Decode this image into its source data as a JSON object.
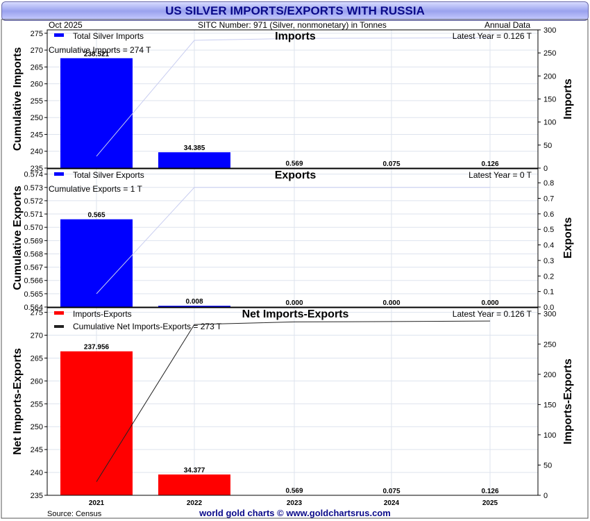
{
  "title": "US SILVER IMPORTS/EXPORTS WITH RUSSIA",
  "header": {
    "date": "Oct  2025",
    "sitc": "SITC Number: 971 (Silver, nonmonetary) in Tonnes",
    "frequency": "Annual Data"
  },
  "footer": {
    "source": "Source: Census",
    "credit": "world gold charts © www.goldchartsrus.com"
  },
  "colors": {
    "imports_bar": "#0000ff",
    "exports_bar": "#0000ff",
    "net_bar": "#ff0000",
    "cum_line_light": "#c8cdf0",
    "cum_line_dark": "#222222",
    "grid": "#dde3ee"
  },
  "chart_data": [
    {
      "type": "bar",
      "panel": "imports",
      "title": "Imports",
      "legend_bar": "Total Silver Imports",
      "cumulative_label": "Cumulative Imports = 274 T",
      "latest_label": "Latest Year = 0.126 T",
      "categories": [
        "2021",
        "2022",
        "2023",
        "2024",
        "2025"
      ],
      "values": [
        238.521,
        34.385,
        0.569,
        0.075,
        0.126
      ],
      "value_labels": [
        "238.521",
        "34.385",
        "0.569",
        "0.075",
        "0.126"
      ],
      "cumulative": [
        238.521,
        272.906,
        273.475,
        273.55,
        273.676
      ],
      "ylabel_left": "Cumulative Imports",
      "ylabel_right": "Imports",
      "left_range": [
        235,
        276
      ],
      "left_ticks": [
        "235",
        "240",
        "245",
        "250",
        "255",
        "260",
        "265",
        "270",
        "275"
      ],
      "right_range": [
        0,
        300
      ],
      "right_ticks": [
        "0",
        "50",
        "100",
        "150",
        "200",
        "250",
        "300"
      ]
    },
    {
      "type": "bar",
      "panel": "exports",
      "title": "Exports",
      "legend_bar": "Total Silver Exports",
      "cumulative_label": "Cumulative Exports = 1 T",
      "latest_label": "Latest Year = 0 T",
      "categories": [
        "2021",
        "2022",
        "2023",
        "2024",
        "2025"
      ],
      "values": [
        0.565,
        0.008,
        0.0,
        0.0,
        0.0
      ],
      "value_labels": [
        "0.565",
        "0.008",
        "0.000",
        "0.000",
        "0.000"
      ],
      "cumulative": [
        0.565,
        0.573,
        0.573,
        0.573,
        0.573
      ],
      "ylabel_left": "Cumulative Exports",
      "ylabel_right": "Exports",
      "left_range": [
        0.564,
        0.5744
      ],
      "left_ticks": [
        "0.564",
        "0.565",
        "0.566",
        "0.567",
        "0.568",
        "0.569",
        "0.570",
        "0.571",
        "0.572",
        "0.573",
        "0.574"
      ],
      "right_range": [
        0,
        0.89
      ],
      "right_ticks": [
        "0.0",
        "0.1",
        "0.2",
        "0.3",
        "0.4",
        "0.5",
        "0.6",
        "0.7",
        "0.8"
      ]
    },
    {
      "type": "bar",
      "panel": "net",
      "title": "Net Imports-Exports",
      "legend_bar": "Imports-Exports",
      "legend_line": "Cumulative Net Imports-Exports = 273 T",
      "latest_label": "Latest Year = 0.126 T",
      "categories": [
        "2021",
        "2022",
        "2023",
        "2024",
        "2025"
      ],
      "values": [
        237.956,
        34.377,
        0.569,
        0.075,
        0.126
      ],
      "value_labels": [
        "237.956",
        "34.377",
        "0.569",
        "0.075",
        "0.126"
      ],
      "cumulative": [
        237.956,
        272.333,
        272.902,
        272.977,
        273.103
      ],
      "ylabel_left": "Net Imports-Exports",
      "ylabel_right": "Imports-Exports",
      "left_range": [
        235,
        276
      ],
      "left_ticks": [
        "235",
        "240",
        "245",
        "250",
        "255",
        "260",
        "265",
        "270",
        "275"
      ],
      "right_range": [
        0,
        310
      ],
      "right_ticks": [
        "0",
        "50",
        "100",
        "150",
        "200",
        "250",
        "300"
      ]
    }
  ]
}
